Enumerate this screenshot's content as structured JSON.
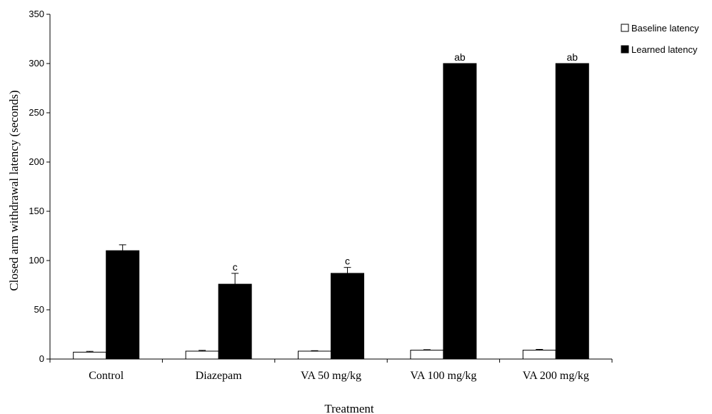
{
  "chart_data": {
    "type": "bar",
    "xlabel": "Treatment",
    "ylabel": "Closed arm withdrawal latency  (seconds)",
    "ylim": [
      0,
      350
    ],
    "yticks": [
      0,
      50,
      100,
      150,
      200,
      250,
      300,
      350
    ],
    "categories": [
      "Control",
      "Diazepam",
      "VA 50 mg/kg",
      "VA 100 mg/kg",
      "VA 200 mg/kg"
    ],
    "series": [
      {
        "name": "Baseline latency",
        "color": "#ffffff",
        "values": [
          7,
          8,
          8,
          9,
          9
        ],
        "errors": [
          0.8,
          0.8,
          0.5,
          0.5,
          0.8
        ]
      },
      {
        "name": "Learned latency",
        "color": "#000000",
        "values": [
          110,
          76,
          87,
          300,
          300
        ],
        "errors": [
          6,
          11,
          6,
          0,
          0
        ]
      }
    ],
    "annotations": [
      "",
      "c",
      "c",
      "ab",
      "ab"
    ],
    "legend_position": "top-right",
    "grid": false
  }
}
